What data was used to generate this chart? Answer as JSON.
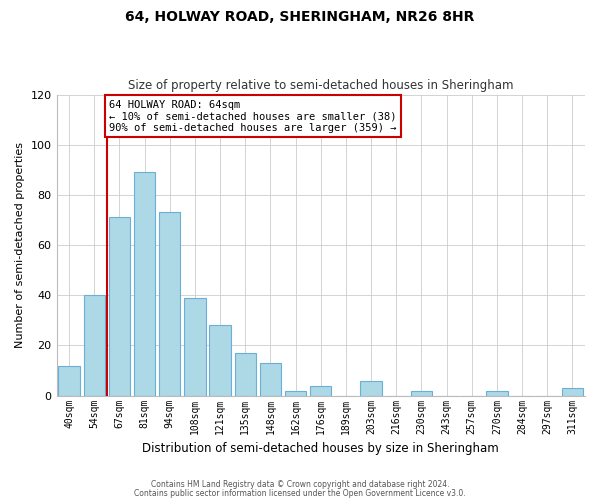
{
  "title": "64, HOLWAY ROAD, SHERINGHAM, NR26 8HR",
  "subtitle": "Size of property relative to semi-detached houses in Sheringham",
  "xlabel": "Distribution of semi-detached houses by size in Sheringham",
  "ylabel": "Number of semi-detached properties",
  "categories": [
    "40sqm",
    "54sqm",
    "67sqm",
    "81sqm",
    "94sqm",
    "108sqm",
    "121sqm",
    "135sqm",
    "148sqm",
    "162sqm",
    "176sqm",
    "189sqm",
    "203sqm",
    "216sqm",
    "230sqm",
    "243sqm",
    "257sqm",
    "270sqm",
    "284sqm",
    "297sqm",
    "311sqm"
  ],
  "values": [
    12,
    40,
    71,
    89,
    73,
    39,
    28,
    17,
    13,
    2,
    4,
    0,
    6,
    0,
    2,
    0,
    0,
    2,
    0,
    0,
    3
  ],
  "bar_color": "#add8e6",
  "bar_edge_color": "#6baed6",
  "highlight_line_color": "#cc0000",
  "annotation_title": "64 HOLWAY ROAD: 64sqm",
  "annotation_line1": "← 10% of semi-detached houses are smaller (38)",
  "annotation_line2": "90% of semi-detached houses are larger (359) →",
  "annotation_box_color": "#ffffff",
  "annotation_box_edge": "#cc0000",
  "ylim": [
    0,
    120
  ],
  "yticks": [
    0,
    20,
    40,
    60,
    80,
    100,
    120
  ],
  "footnote1": "Contains HM Land Registry data © Crown copyright and database right 2024.",
  "footnote2": "Contains public sector information licensed under the Open Government Licence v3.0."
}
